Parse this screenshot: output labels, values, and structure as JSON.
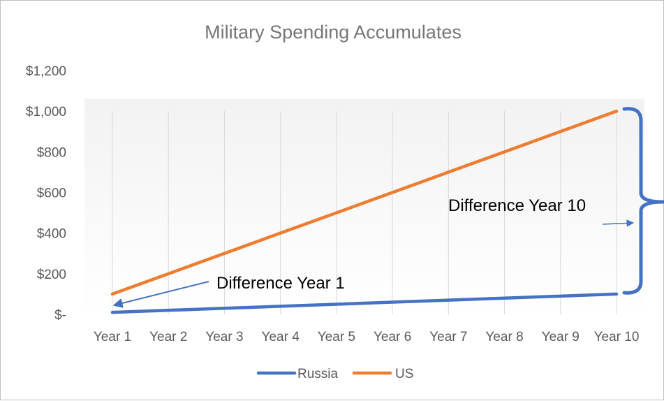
{
  "chart_data": {
    "type": "line",
    "title": "Military Spending  Accumulates",
    "categories": [
      "Year 1",
      "Year 2",
      "Year 3",
      "Year 4",
      "Year 5",
      "Year 6",
      "Year 7",
      "Year 8",
      "Year 9",
      "Year 10"
    ],
    "series": [
      {
        "name": "Russia",
        "values": [
          10,
          20,
          30,
          40,
          50,
          60,
          70,
          80,
          90,
          100
        ],
        "color": "#4472c4"
      },
      {
        "name": "US",
        "values": [
          100,
          200,
          300,
          400,
          500,
          600,
          700,
          800,
          900,
          1000
        ],
        "color": "#ed7d31"
      }
    ],
    "ylim": [
      0,
      1200
    ],
    "yticks": [
      0,
      200,
      400,
      600,
      800,
      1000,
      1200
    ],
    "ytick_labels": [
      "$-",
      "$200",
      "$400",
      "$600",
      "$800",
      "$1,000",
      "$1,200"
    ],
    "grid": "vertical",
    "legend": "bottom",
    "annotations": {
      "year1": "Difference Year 1",
      "year10": "Difference Year 10"
    },
    "annotation_color": "#4472c4"
  }
}
